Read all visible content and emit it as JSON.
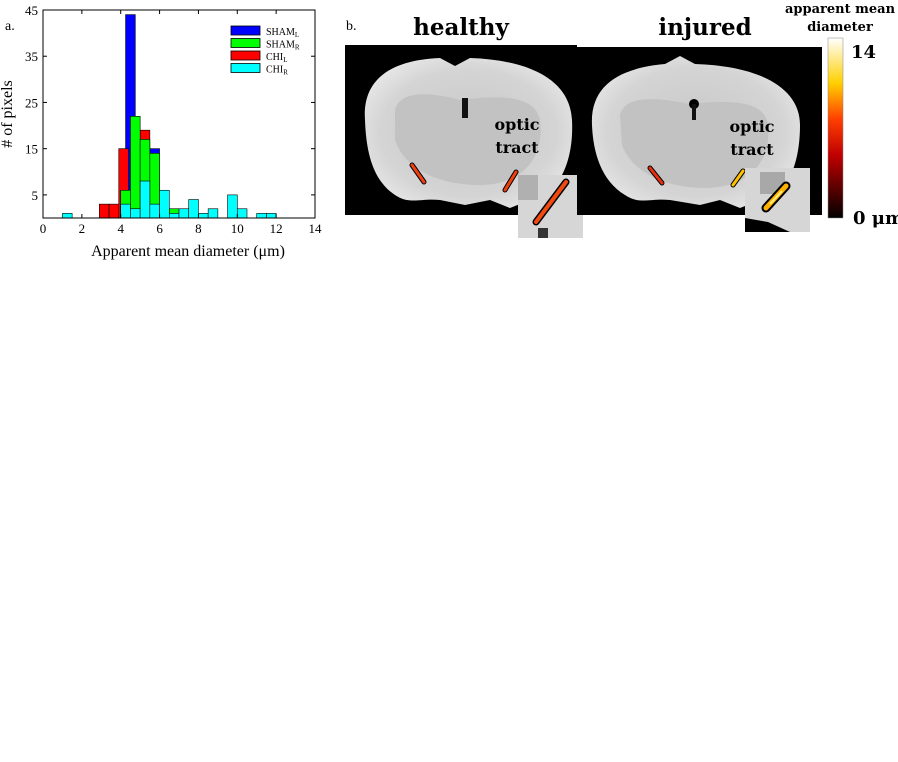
{
  "panel_a_label": "a.",
  "panel_b_label": "b.",
  "chart_data": {
    "type": "bar",
    "title": "",
    "xlabel": "Apparent mean diameter (μm)",
    "ylabel": "# of pixels",
    "xlim": [
      0,
      14
    ],
    "ylim": [
      0,
      45
    ],
    "xticks": [
      "0",
      "2",
      "4",
      "6",
      "8",
      "10",
      "12",
      "14"
    ],
    "yticks": [
      "5",
      "15",
      "25",
      "35",
      "45"
    ],
    "legend_position": "top-right",
    "bin_width": 0.5,
    "series": [
      {
        "name": "SHAM",
        "sub": "L",
        "color": "#0000ff",
        "bins": [
          [
            4.25,
            44
          ],
          [
            5.5,
            15
          ]
        ]
      },
      {
        "name": "CHI",
        "sub": "L",
        "color": "#ff0000",
        "bins": [
          [
            2.9,
            3
          ],
          [
            3.4,
            3
          ],
          [
            3.9,
            15
          ],
          [
            5.0,
            19
          ]
        ]
      },
      {
        "name": "SHAM",
        "sub": "R",
        "color": "#00ff00",
        "bins": [
          [
            4.0,
            6
          ],
          [
            4.5,
            22
          ],
          [
            5.0,
            17
          ],
          [
            5.5,
            14
          ],
          [
            6.5,
            2
          ]
        ]
      },
      {
        "name": "CHI",
        "sub": "R",
        "color": "#00ffff",
        "bins": [
          [
            1.0,
            1
          ],
          [
            4.0,
            3
          ],
          [
            4.5,
            2
          ],
          [
            5.0,
            8
          ],
          [
            5.5,
            3
          ],
          [
            6.0,
            6
          ],
          [
            6.5,
            1
          ],
          [
            7.0,
            2
          ],
          [
            7.5,
            4
          ],
          [
            8.0,
            1
          ],
          [
            8.5,
            2
          ],
          [
            9.5,
            5
          ],
          [
            10.0,
            2
          ],
          [
            11.0,
            1
          ],
          [
            11.5,
            1
          ]
        ]
      }
    ]
  },
  "images": {
    "healthy_title": "healthy",
    "injured_title": "injured",
    "annotation_line1": "optic",
    "annotation_line2": "tract"
  },
  "colorbar": {
    "title_line1": "apparent mean",
    "title_line2": "diameter",
    "max_label": "14",
    "min_label": "0 μm"
  }
}
